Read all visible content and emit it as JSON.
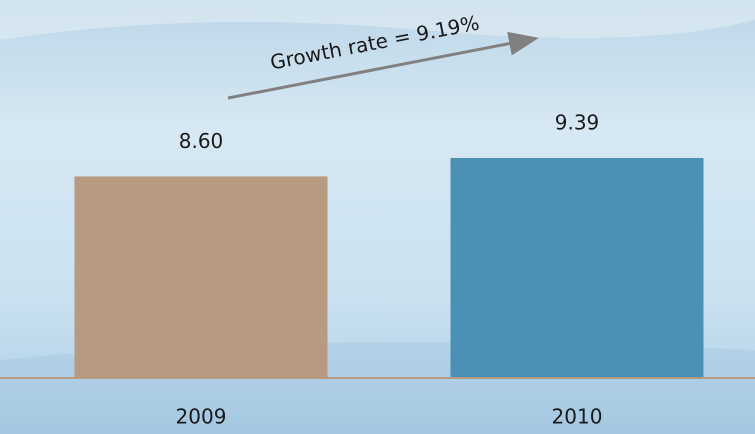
{
  "chart_data": {
    "type": "bar",
    "annotation": "Growth rate = 9.19%",
    "categories": [
      "2009",
      "2010"
    ],
    "values": [
      8.6,
      9.39
    ],
    "value_labels": [
      "8.60",
      "9.39"
    ],
    "colors": [
      "#b69b80",
      "#4b91b5"
    ]
  }
}
